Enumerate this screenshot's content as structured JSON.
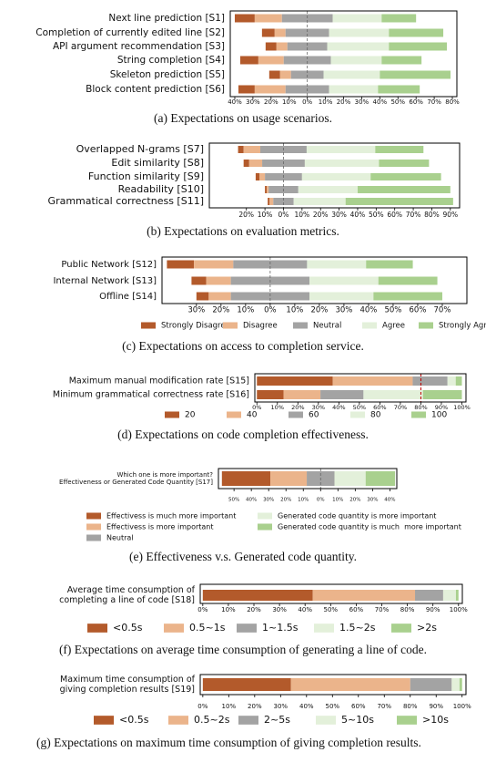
{
  "chart_data": [
    {
      "type": "bar",
      "diverging": true,
      "title": "(a) Expectations on usage scenarios.",
      "categories": [
        "Next line prediction [S1]",
        "Completion of currently edited line [S2]",
        "API argument recommendation [S3]",
        "String completion [S4]",
        "Skeleton prediction [S5]",
        "Block content prediction [S6]"
      ],
      "series": [
        {
          "color": "#b35a2b",
          "values": [
            11,
            7,
            6,
            10,
            6,
            9
          ]
        },
        {
          "color": "#ebb48b",
          "values": [
            15,
            6,
            6,
            14,
            6,
            17
          ]
        },
        {
          "color": "#a3a3a3",
          "values": [
            28,
            24,
            22,
            26,
            18,
            24
          ]
        },
        {
          "color": "#e3f0da",
          "values": [
            27,
            33,
            34,
            28,
            31,
            27
          ]
        },
        {
          "color": "#a9d08e",
          "values": [
            19,
            30,
            32,
            22,
            39,
            23
          ]
        }
      ],
      "xlim": [
        -42.5,
        82.5
      ],
      "xticks": [
        {
          "value": -40,
          "label": "40%"
        },
        {
          "value": -30,
          "label": "30%"
        },
        {
          "value": -20,
          "label": "20%"
        },
        {
          "value": -10,
          "label": "10%"
        },
        {
          "value": 0,
          "label": "0%"
        },
        {
          "value": 10,
          "label": "10%"
        },
        {
          "value": 20,
          "label": "20%"
        },
        {
          "value": 30,
          "label": "30%"
        },
        {
          "value": 40,
          "label": "40%"
        },
        {
          "value": 50,
          "label": "50%"
        },
        {
          "value": 60,
          "label": "60%"
        },
        {
          "value": 70,
          "label": "70%"
        },
        {
          "value": 80,
          "label": "80%"
        }
      ]
    },
    {
      "type": "bar",
      "diverging": true,
      "title": "(b) Expectations on evaluation metrics.",
      "categories": [
        "Overlapped N-grams [S7]",
        "Edit similarity [S8]",
        "Function similarity [S9]",
        "Readability [S10]",
        "Grammatical correctness [S11]"
      ],
      "series": [
        {
          "color": "#b35a2b",
          "values": [
            3,
            3,
            2,
            1,
            1
          ]
        },
        {
          "color": "#ebb48b",
          "values": [
            9,
            7,
            3,
            1,
            2
          ]
        },
        {
          "color": "#a3a3a3",
          "values": [
            25,
            23,
            20,
            16,
            11
          ]
        },
        {
          "color": "#e3f0da",
          "values": [
            37,
            40,
            37,
            32,
            28
          ]
        },
        {
          "color": "#a9d08e",
          "values": [
            26,
            27,
            38,
            50,
            58
          ]
        }
      ],
      "xlim": [
        -40,
        95
      ],
      "xticks": [
        {
          "value": -20,
          "label": "20%"
        },
        {
          "value": -10,
          "label": "10%"
        },
        {
          "value": 0,
          "label": "0%"
        },
        {
          "value": 10,
          "label": "10%"
        },
        {
          "value": 20,
          "label": "20%"
        },
        {
          "value": 30,
          "label": "30%"
        },
        {
          "value": 40,
          "label": "40%"
        },
        {
          "value": 50,
          "label": "50%"
        },
        {
          "value": 60,
          "label": "60%"
        },
        {
          "value": 70,
          "label": "70%"
        },
        {
          "value": 80,
          "label": "80%"
        },
        {
          "value": 90,
          "label": "90%"
        }
      ]
    },
    {
      "type": "bar",
      "diverging": true,
      "title": "(c) Expectations on access to completion service.",
      "categories": [
        "Public Network [S12]",
        "Internal Network [S13]",
        "Offline [S14]"
      ],
      "series": [
        {
          "name": "Strongly Disagree",
          "color": "#b35a2b",
          "values": [
            11,
            6,
            5
          ]
        },
        {
          "name": "Disagree",
          "color": "#ebb48b",
          "values": [
            16,
            10,
            9
          ]
        },
        {
          "name": "Neutral",
          "color": "#a3a3a3",
          "values": [
            30,
            32,
            32
          ]
        },
        {
          "name": "Agree",
          "color": "#e3f0da",
          "values": [
            24,
            28,
            26
          ]
        },
        {
          "name": "Strongly Agree",
          "color": "#a9d08e",
          "values": [
            19,
            24,
            28
          ]
        }
      ],
      "xlim": [
        -44,
        80
      ],
      "xticks": [
        {
          "value": -30,
          "label": "30%"
        },
        {
          "value": -20,
          "label": "20%"
        },
        {
          "value": -10,
          "label": "10%"
        },
        {
          "value": 0,
          "label": "0%"
        },
        {
          "value": 10,
          "label": "10%"
        },
        {
          "value": 20,
          "label": "20%"
        },
        {
          "value": 30,
          "label": "30%"
        },
        {
          "value": 40,
          "label": "40%"
        },
        {
          "value": 50,
          "label": "50%"
        },
        {
          "value": 60,
          "label": "60%"
        },
        {
          "value": 70,
          "label": "70%"
        }
      ]
    },
    {
      "type": "bar",
      "diverging": false,
      "title": "(d) Expectations on code completion effectiveness.",
      "categories": [
        "Maximum manual modification rate [S15]",
        "Minimum grammatical correctness rate [S16]"
      ],
      "series": [
        {
          "name": "20",
          "color": "#b35a2b",
          "values": [
            37,
            13
          ]
        },
        {
          "name": "40",
          "color": "#ebb48b",
          "values": [
            39,
            18
          ]
        },
        {
          "name": "60",
          "color": "#a3a3a3",
          "values": [
            17,
            21
          ]
        },
        {
          "name": "80",
          "color": "#e3f0da",
          "values": [
            4,
            29
          ]
        },
        {
          "name": "100",
          "color": "#a9d08e",
          "values": [
            3,
            19
          ]
        }
      ],
      "vline": 80,
      "vline_color": "#c00000",
      "xlim": [
        -1,
        102
      ],
      "xticks": [
        {
          "value": 0,
          "label": "0%"
        },
        {
          "value": 10,
          "label": "10%"
        },
        {
          "value": 20,
          "label": "20%"
        },
        {
          "value": 30,
          "label": "30%"
        },
        {
          "value": 40,
          "label": "40%"
        },
        {
          "value": 50,
          "label": "50%"
        },
        {
          "value": 60,
          "label": "60%"
        },
        {
          "value": 70,
          "label": "70%"
        },
        {
          "value": 80,
          "label": "80%"
        },
        {
          "value": 90,
          "label": "90%"
        },
        {
          "value": 100,
          "label": "100%"
        }
      ]
    },
    {
      "type": "bar",
      "diverging": true,
      "title": "(e) Effectiveness v.s. Generated code quantity.",
      "categories": [
        [
          "Which one is more important?",
          "Effectiveness or Generated Code Quantity [S17]"
        ]
      ],
      "series": [
        {
          "name": "Effectivess is much more important",
          "color": "#b35a2b",
          "values": [
            28
          ]
        },
        {
          "name": "Effectivess is more important",
          "color": "#ebb48b",
          "values": [
            21
          ]
        },
        {
          "name": "Neutral",
          "color": "#a3a3a3",
          "values": [
            16
          ]
        },
        {
          "name": "Generated code quantity is more important",
          "color": "#e3f0da",
          "values": [
            18
          ]
        },
        {
          "name": "Generated code quantity is much  more important",
          "color": "#a9d08e",
          "values": [
            17
          ]
        }
      ],
      "xlim": [
        -59,
        44
      ],
      "xticks": [
        {
          "value": -50,
          "label": "50%"
        },
        {
          "value": -40,
          "label": "40%"
        },
        {
          "value": -30,
          "label": "30%"
        },
        {
          "value": -20,
          "label": "20%"
        },
        {
          "value": -10,
          "label": "10%"
        },
        {
          "value": 0,
          "label": "0%"
        },
        {
          "value": 10,
          "label": "10%"
        },
        {
          "value": 20,
          "label": "20%"
        },
        {
          "value": 30,
          "label": "30%"
        },
        {
          "value": 40,
          "label": "40%"
        }
      ]
    },
    {
      "type": "bar",
      "diverging": false,
      "title": "(f) Expectations on average time consumption of generating a line of code.",
      "categories": [
        [
          "Average time consumption of",
          "completing a line of code [S18]"
        ]
      ],
      "series": [
        {
          "name": "<0.5s",
          "color": "#b35a2b",
          "values": [
            43
          ]
        },
        {
          "name": "0.5~1s",
          "color": "#ebb48b",
          "values": [
            40
          ]
        },
        {
          "name": "1~1.5s",
          "color": "#a3a3a3",
          "values": [
            11
          ]
        },
        {
          "name": "1.5~2s",
          "color": "#e3f0da",
          "values": [
            5
          ]
        },
        {
          "name": ">2s",
          "color": "#a9d08e",
          "values": [
            1
          ]
        }
      ],
      "xlim": [
        -1,
        101.5
      ],
      "xticks": [
        {
          "value": 0,
          "label": "0%"
        },
        {
          "value": 10,
          "label": "10%"
        },
        {
          "value": 20,
          "label": "20%"
        },
        {
          "value": 30,
          "label": "30%"
        },
        {
          "value": 40,
          "label": "40%"
        },
        {
          "value": 50,
          "label": "50%"
        },
        {
          "value": 60,
          "label": "60%"
        },
        {
          "value": 70,
          "label": "70%"
        },
        {
          "value": 80,
          "label": "80%"
        },
        {
          "value": 90,
          "label": "90%"
        },
        {
          "value": 100,
          "label": "100%"
        }
      ]
    },
    {
      "type": "bar",
      "diverging": false,
      "title": "(g) Expectations on maximum time consumption of giving completion results.",
      "categories": [
        [
          "Maximum time consumption of",
          "giving completion results [S19]"
        ]
      ],
      "series": [
        {
          "name": "<0.5s",
          "color": "#b35a2b",
          "values": [
            34
          ]
        },
        {
          "name": "0.5~2s",
          "color": "#ebb48b",
          "values": [
            46
          ]
        },
        {
          "name": "2~5s",
          "color": "#a3a3a3",
          "values": [
            16
          ]
        },
        {
          "name": "5~10s",
          "color": "#e3f0da",
          "values": [
            3
          ]
        },
        {
          "name": ">10s",
          "color": "#a9d08e",
          "values": [
            1
          ]
        }
      ],
      "xlim": [
        -1,
        101.5
      ],
      "xticks": [
        {
          "value": 0,
          "label": "0%"
        },
        {
          "value": 10,
          "label": "10%"
        },
        {
          "value": 20,
          "label": "20%"
        },
        {
          "value": 30,
          "label": "30%"
        },
        {
          "value": 40,
          "label": "40%"
        },
        {
          "value": 50,
          "label": "50%"
        },
        {
          "value": 60,
          "label": "60%"
        },
        {
          "value": 70,
          "label": "70%"
        },
        {
          "value": 80,
          "label": "80%"
        },
        {
          "value": 90,
          "label": "90%"
        },
        {
          "value": 100,
          "label": "100%"
        }
      ]
    }
  ]
}
